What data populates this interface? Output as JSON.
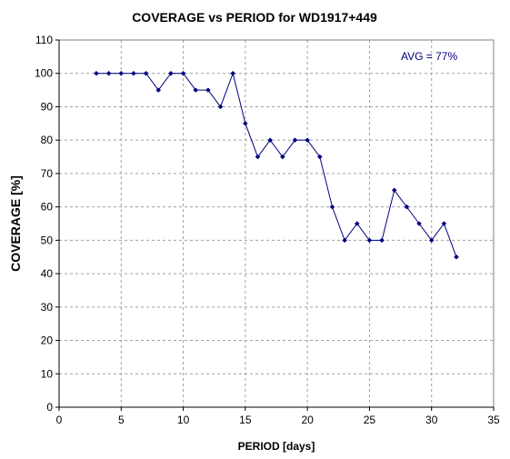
{
  "chart_data": {
    "type": "line",
    "title": "COVERAGE vs PERIOD for WD1917+449",
    "xlabel": "PERIOD [days]",
    "ylabel": "COVERAGE [%]",
    "xlim": [
      0,
      35
    ],
    "ylim": [
      0,
      110
    ],
    "xticks": [
      0,
      5,
      10,
      15,
      20,
      25,
      30,
      35
    ],
    "yticks": [
      0,
      10,
      20,
      30,
      40,
      50,
      60,
      70,
      80,
      90,
      100,
      110
    ],
    "grid": true,
    "annotation": "AVG = 77%",
    "line_color": "#000080",
    "series": [
      {
        "x": [
          3,
          4,
          5,
          6,
          7,
          8,
          9,
          10,
          11,
          12,
          13,
          14,
          15,
          16,
          17,
          18,
          19,
          20,
          21,
          22,
          23,
          24,
          25,
          26,
          27,
          28,
          29,
          30,
          31,
          32
        ],
        "y": [
          100,
          100,
          100,
          100,
          100,
          95,
          100,
          100,
          95,
          95,
          90,
          100,
          85,
          75,
          80,
          75,
          80,
          80,
          75,
          60,
          50,
          55,
          50,
          50,
          65,
          60,
          55,
          50,
          55,
          45
        ]
      }
    ]
  }
}
